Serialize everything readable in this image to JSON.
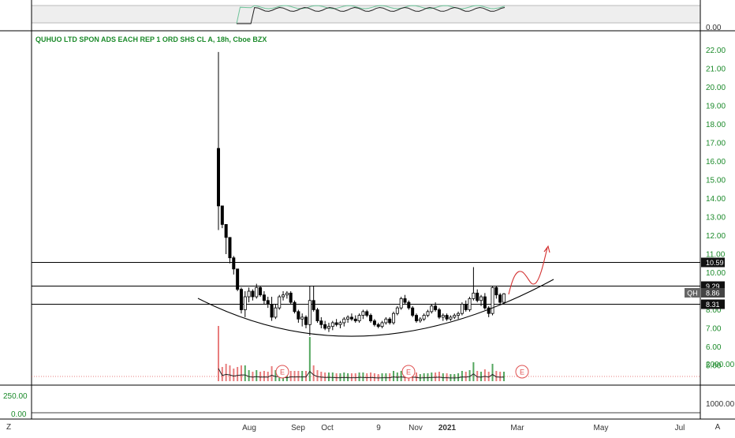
{
  "chart_data": {
    "type": "candlestick",
    "title": "QUHUO LTD SPON ADS EACH REP 1 ORD SHS CL A, 18h, Cboe BZX",
    "ticker": "QH",
    "y_ticks": [
      "22.00",
      "21.00",
      "20.00",
      "19.00",
      "18.00",
      "17.00",
      "16.00",
      "15.00",
      "14.00",
      "13.00",
      "12.00",
      "11.00",
      "10.00",
      "9.00",
      "8.00",
      "7.00",
      "6.00",
      "5.00"
    ],
    "ylim": [
      4,
      23
    ],
    "x_ticks": [
      "Aug",
      "Sep",
      "Oct",
      "9",
      "Nov",
      "2021",
      "Mar",
      "May",
      "Jul"
    ],
    "horizontal_levels": [
      {
        "value": 10.59,
        "label": "10.59"
      },
      {
        "value": 9.29,
        "label": "9.29"
      },
      {
        "value": 8.31,
        "label": "8.31"
      }
    ],
    "last_price": {
      "symbol": "QH",
      "value": "8.86"
    },
    "earnings_markers": [
      "E",
      "E",
      "E"
    ],
    "candles": [
      [
        16.7,
        21.9,
        12.3,
        13.6
      ],
      [
        13.6,
        13.6,
        12.4,
        12.6
      ],
      [
        12.6,
        12.6,
        11.0,
        11.9
      ],
      [
        11.9,
        11.9,
        10.5,
        10.8
      ],
      [
        10.8,
        10.9,
        9.9,
        10.2
      ],
      [
        10.2,
        10.2,
        9.0,
        9.1
      ],
      [
        9.1,
        9.2,
        7.8,
        8.0
      ],
      [
        8.0,
        9.0,
        7.6,
        8.7
      ],
      [
        8.7,
        9.2,
        8.4,
        9.0
      ],
      [
        9.0,
        9.1,
        8.5,
        8.7
      ],
      [
        8.7,
        9.4,
        8.6,
        9.2
      ],
      [
        9.2,
        9.3,
        8.7,
        8.8
      ],
      [
        8.8,
        9.0,
        8.3,
        8.5
      ],
      [
        8.5,
        8.7,
        8.1,
        8.3
      ],
      [
        8.3,
        8.7,
        7.4,
        7.6
      ],
      [
        7.6,
        8.3,
        7.5,
        8.1
      ],
      [
        8.1,
        8.8,
        8.0,
        8.7
      ],
      [
        8.7,
        9.0,
        8.5,
        8.8
      ],
      [
        8.8,
        9.0,
        8.6,
        8.9
      ],
      [
        8.9,
        9.0,
        8.3,
        8.4
      ],
      [
        8.4,
        8.5,
        7.8,
        7.9
      ],
      [
        7.9,
        8.0,
        7.3,
        7.5
      ],
      [
        7.5,
        7.8,
        7.1,
        7.6
      ],
      [
        7.6,
        7.7,
        7.0,
        7.2
      ],
      [
        7.2,
        9.3,
        6.6,
        8.5
      ],
      [
        8.5,
        9.3,
        7.9,
        8.0
      ],
      [
        8.0,
        8.1,
        7.3,
        7.4
      ],
      [
        7.4,
        7.6,
        7.0,
        7.2
      ],
      [
        7.2,
        7.4,
        6.9,
        7.0
      ],
      [
        7.0,
        7.3,
        6.8,
        7.1
      ],
      [
        7.1,
        7.4,
        6.9,
        7.3
      ],
      [
        7.3,
        7.5,
        7.1,
        7.2
      ],
      [
        7.2,
        7.4,
        7.0,
        7.3
      ],
      [
        7.3,
        7.6,
        7.1,
        7.5
      ],
      [
        7.5,
        7.7,
        7.3,
        7.6
      ],
      [
        7.6,
        7.8,
        7.4,
        7.5
      ],
      [
        7.5,
        7.7,
        7.3,
        7.4
      ],
      [
        7.4,
        7.8,
        7.3,
        7.7
      ],
      [
        7.7,
        8.0,
        7.5,
        7.9
      ],
      [
        7.9,
        8.0,
        7.6,
        7.7
      ],
      [
        7.7,
        7.8,
        7.3,
        7.4
      ],
      [
        7.4,
        7.5,
        7.1,
        7.2
      ],
      [
        7.2,
        7.3,
        7.0,
        7.1
      ],
      [
        7.1,
        7.4,
        7.0,
        7.3
      ],
      [
        7.3,
        7.6,
        7.2,
        7.5
      ],
      [
        7.5,
        7.6,
        7.2,
        7.3
      ],
      [
        7.3,
        7.9,
        7.2,
        7.8
      ],
      [
        7.8,
        8.2,
        7.7,
        8.1
      ],
      [
        8.1,
        8.7,
        8.0,
        8.6
      ],
      [
        8.6,
        8.8,
        8.3,
        8.4
      ],
      [
        8.4,
        8.5,
        8.0,
        8.1
      ],
      [
        8.1,
        8.2,
        7.6,
        7.7
      ],
      [
        7.7,
        7.8,
        7.3,
        7.4
      ],
      [
        7.4,
        7.6,
        7.3,
        7.5
      ],
      [
        7.5,
        7.8,
        7.4,
        7.7
      ],
      [
        7.7,
        8.0,
        7.6,
        7.9
      ],
      [
        7.9,
        8.3,
        7.8,
        8.2
      ],
      [
        8.2,
        8.4,
        7.9,
        8.0
      ],
      [
        8.0,
        8.1,
        7.5,
        7.6
      ],
      [
        7.6,
        7.8,
        7.4,
        7.7
      ],
      [
        7.7,
        7.8,
        7.4,
        7.5
      ],
      [
        7.5,
        7.7,
        7.4,
        7.6
      ],
      [
        7.6,
        7.8,
        7.5,
        7.7
      ],
      [
        7.7,
        7.9,
        7.5,
        7.8
      ],
      [
        7.8,
        8.4,
        7.7,
        8.3
      ],
      [
        8.3,
        8.5,
        7.9,
        8.0
      ],
      [
        8.0,
        8.7,
        7.9,
        8.6
      ],
      [
        8.6,
        10.3,
        8.5,
        8.9
      ],
      [
        8.9,
        9.1,
        8.4,
        8.5
      ],
      [
        8.5,
        8.8,
        8.2,
        8.7
      ],
      [
        8.7,
        8.9,
        8.0,
        8.1
      ],
      [
        8.1,
        8.2,
        7.6,
        7.8
      ],
      [
        7.8,
        9.3,
        7.7,
        9.2
      ],
      [
        9.2,
        9.3,
        8.6,
        8.8
      ],
      [
        8.8,
        8.9,
        8.3,
        8.4
      ],
      [
        8.4,
        8.9,
        8.3,
        8.86
      ]
    ],
    "volume": {
      "y_ticks": [
        "2000.00",
        "1000.00"
      ],
      "ylim": [
        0,
        2600
      ]
    },
    "oscillator": {
      "y_ticks": [
        "0.00"
      ]
    },
    "lower_pane": {
      "y_ticks": [
        "250.00",
        "0.00"
      ]
    }
  },
  "ui": {
    "corner_left": "Z",
    "corner_right": "A"
  },
  "colors": {
    "up": "#1b8a2a",
    "down": "#e05252",
    "candle": "#000000",
    "curve": "#000000",
    "arrow": "#d32f2f",
    "text_green": "#1b8a2a"
  }
}
